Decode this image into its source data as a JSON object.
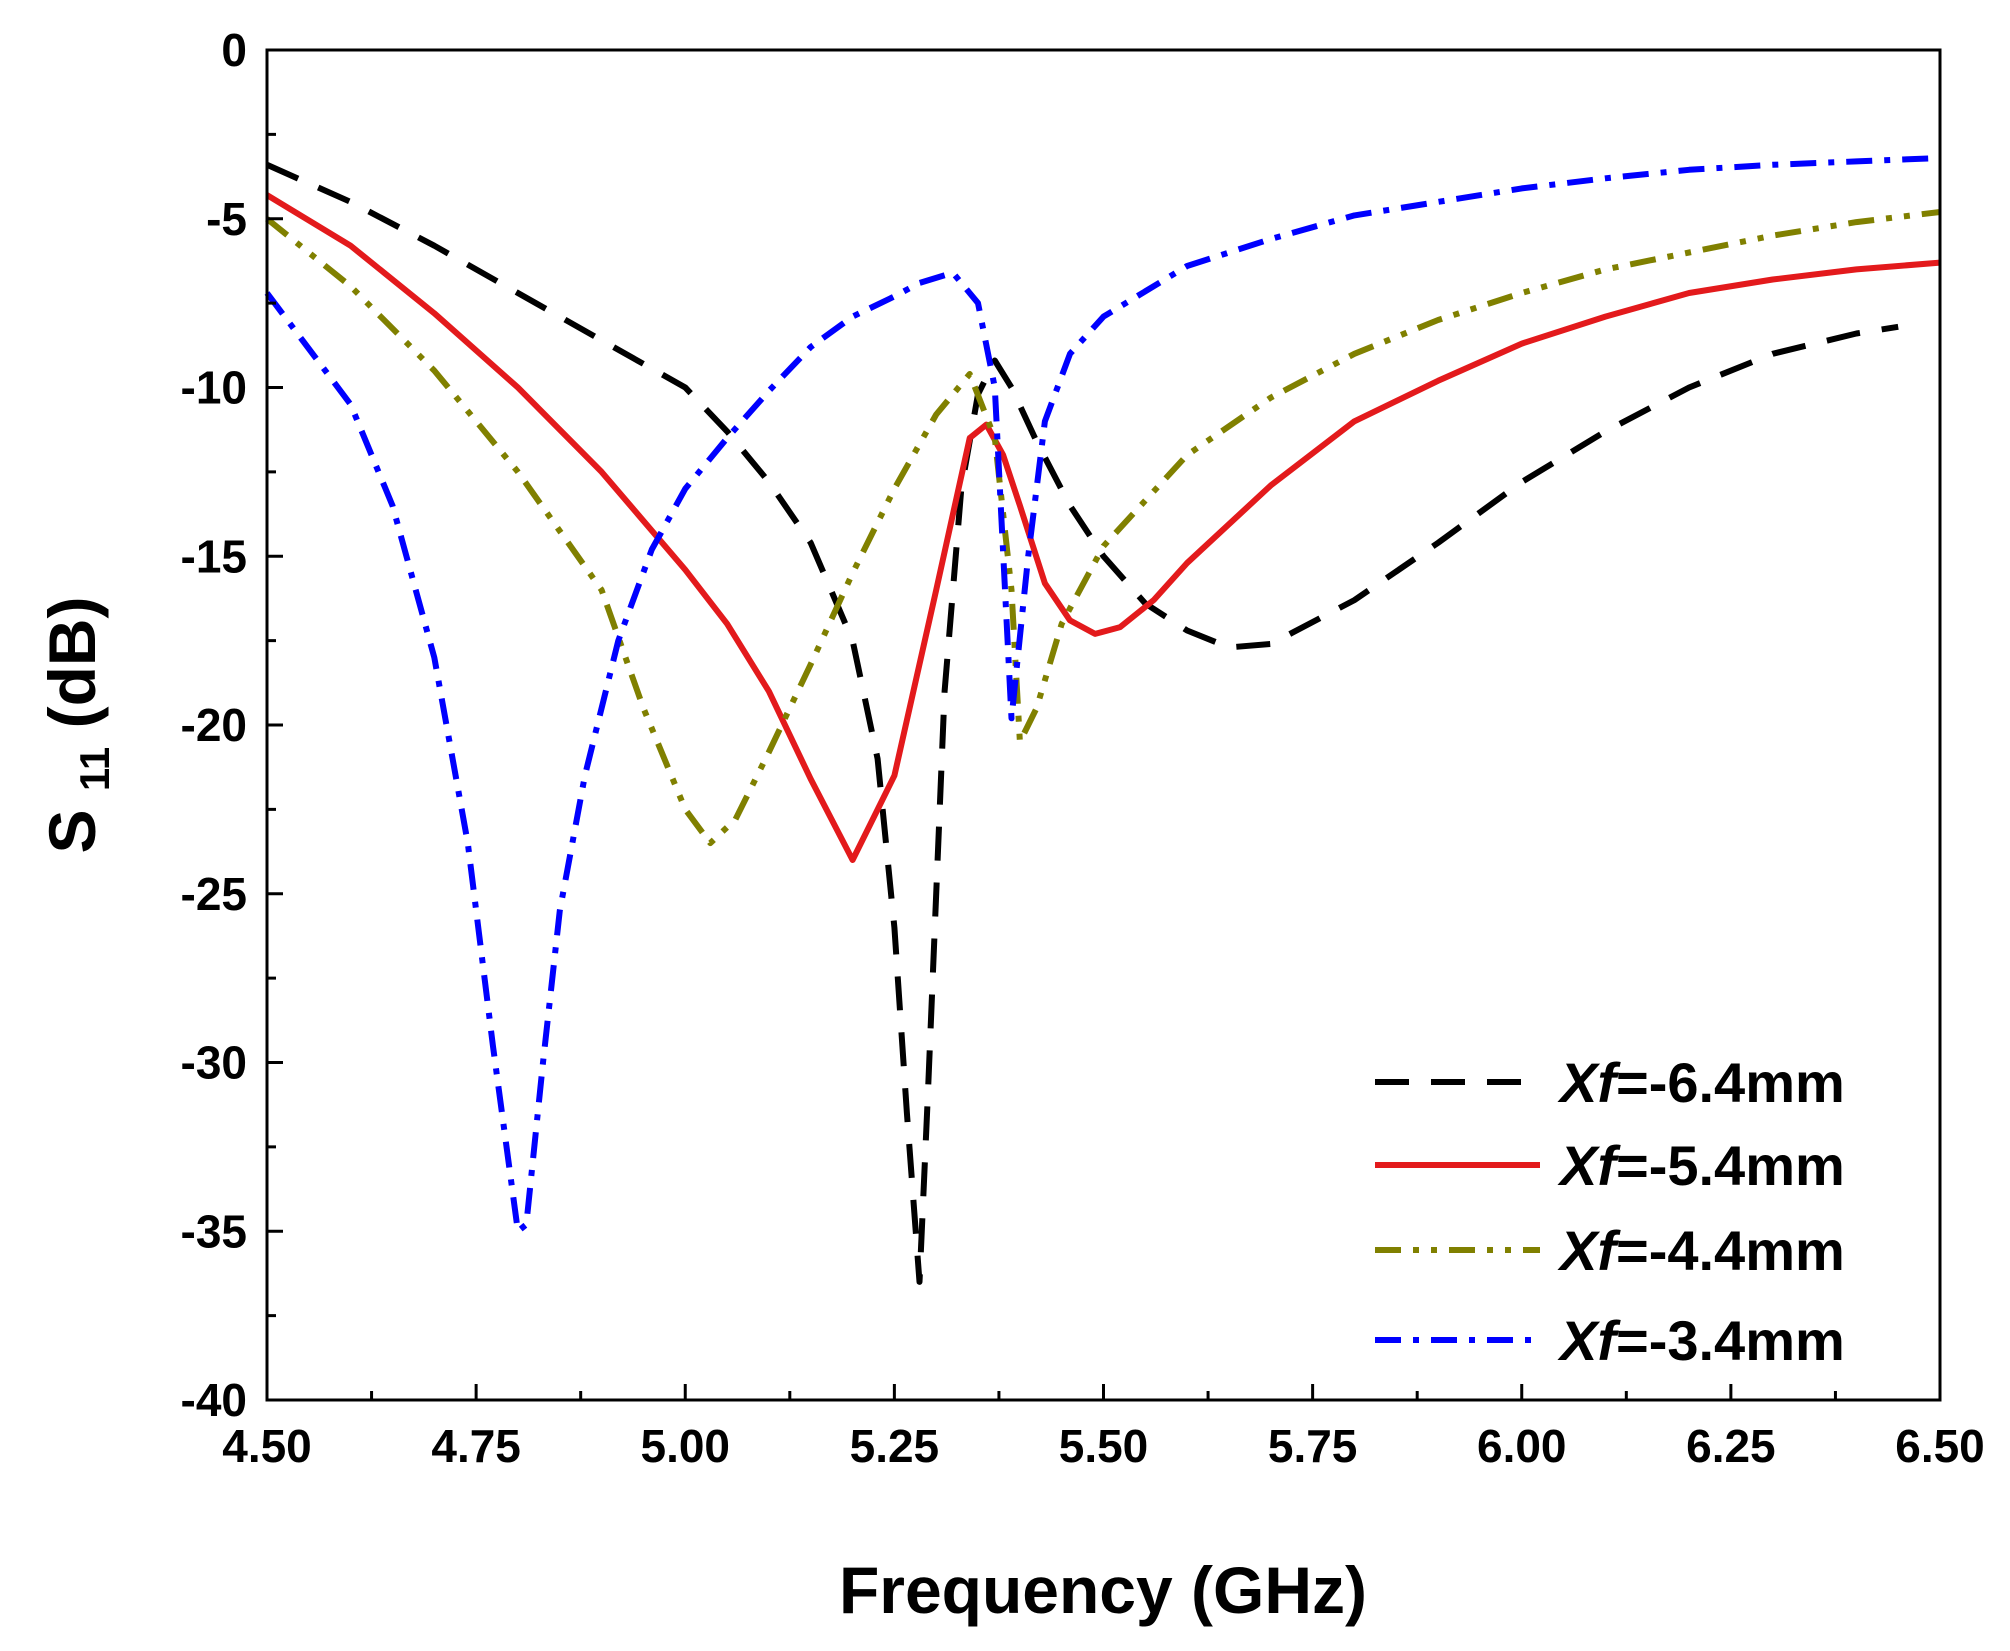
{
  "chart_data": {
    "type": "line",
    "title": "",
    "xlabel": "Frequency (GHz)",
    "ylabel_main": "S",
    "ylabel_sub": "11",
    "ylabel_unit": " (dB)",
    "xlim": [
      4.5,
      6.5
    ],
    "ylim": [
      -40,
      0
    ],
    "x_ticks": [
      4.5,
      4.75,
      5.0,
      5.25,
      5.5,
      5.75,
      6.0,
      6.25,
      6.5
    ],
    "x_tick_labels": [
      "4.50",
      "4.75",
      "5.00",
      "5.25",
      "5.50",
      "5.75",
      "6.00",
      "6.25",
      "6.50"
    ],
    "y_ticks": [
      0,
      -5,
      -10,
      -15,
      -20,
      -25,
      -30,
      -35,
      -40
    ],
    "y_tick_labels": [
      "0",
      "-5",
      "-10",
      "-15",
      "-20",
      "-25",
      "-30",
      "-35",
      "-40"
    ],
    "grid": false,
    "legend_position": "bottom-right",
    "series": [
      {
        "name": "Xf=-6.4mm",
        "label_var": "Xf",
        "label_value": "=-6.4mm",
        "color": "#000000",
        "dash": "dash",
        "points": [
          [
            4.5,
            -3.4
          ],
          [
            4.6,
            -4.5
          ],
          [
            4.7,
            -5.8
          ],
          [
            4.8,
            -7.2
          ],
          [
            4.9,
            -8.6
          ],
          [
            5.0,
            -10.0
          ],
          [
            5.05,
            -11.3
          ],
          [
            5.1,
            -12.8
          ],
          [
            5.15,
            -14.6
          ],
          [
            5.2,
            -17.5
          ],
          [
            5.23,
            -21.0
          ],
          [
            5.25,
            -26.0
          ],
          [
            5.265,
            -31.5
          ],
          [
            5.28,
            -36.5
          ],
          [
            5.29,
            -31.0
          ],
          [
            5.3,
            -25.0
          ],
          [
            5.31,
            -19.0
          ],
          [
            5.33,
            -13.0
          ],
          [
            5.35,
            -10.2
          ],
          [
            5.37,
            -9.2
          ],
          [
            5.39,
            -10.0
          ],
          [
            5.42,
            -11.6
          ],
          [
            5.46,
            -13.5
          ],
          [
            5.5,
            -15.0
          ],
          [
            5.55,
            -16.4
          ],
          [
            5.6,
            -17.2
          ],
          [
            5.65,
            -17.7
          ],
          [
            5.7,
            -17.6
          ],
          [
            5.8,
            -16.3
          ],
          [
            5.9,
            -14.6
          ],
          [
            6.0,
            -12.8
          ],
          [
            6.1,
            -11.3
          ],
          [
            6.2,
            -10.0
          ],
          [
            6.3,
            -9.0
          ],
          [
            6.4,
            -8.4
          ],
          [
            6.45,
            -8.2
          ]
        ]
      },
      {
        "name": "Xf=-5.4mm",
        "label_var": "Xf",
        "label_value": "=-5.4mm",
        "color": "#e31a1c",
        "dash": "solid",
        "points": [
          [
            4.5,
            -4.3
          ],
          [
            4.6,
            -5.8
          ],
          [
            4.7,
            -7.8
          ],
          [
            4.8,
            -10.0
          ],
          [
            4.9,
            -12.5
          ],
          [
            5.0,
            -15.4
          ],
          [
            5.05,
            -17.0
          ],
          [
            5.1,
            -19.0
          ],
          [
            5.15,
            -21.6
          ],
          [
            5.2,
            -24.0
          ],
          [
            5.25,
            -21.5
          ],
          [
            5.3,
            -16.0
          ],
          [
            5.34,
            -11.5
          ],
          [
            5.36,
            -11.1
          ],
          [
            5.38,
            -12.0
          ],
          [
            5.4,
            -13.5
          ],
          [
            5.43,
            -15.8
          ],
          [
            5.46,
            -16.9
          ],
          [
            5.49,
            -17.3
          ],
          [
            5.52,
            -17.1
          ],
          [
            5.56,
            -16.3
          ],
          [
            5.6,
            -15.2
          ],
          [
            5.7,
            -12.9
          ],
          [
            5.8,
            -11.0
          ],
          [
            5.9,
            -9.8
          ],
          [
            6.0,
            -8.7
          ],
          [
            6.1,
            -7.9
          ],
          [
            6.2,
            -7.2
          ],
          [
            6.3,
            -6.8
          ],
          [
            6.4,
            -6.5
          ],
          [
            6.5,
            -6.3
          ]
        ]
      },
      {
        "name": "Xf=-4.4mm",
        "label_var": "Xf",
        "label_value": "=-4.4mm",
        "color": "#808000",
        "dash": "dashdotdot",
        "points": [
          [
            4.5,
            -5.0
          ],
          [
            4.6,
            -7.0
          ],
          [
            4.7,
            -9.5
          ],
          [
            4.8,
            -12.5
          ],
          [
            4.9,
            -16.0
          ],
          [
            4.95,
            -19.5
          ],
          [
            5.0,
            -22.5
          ],
          [
            5.03,
            -23.5
          ],
          [
            5.06,
            -22.8
          ],
          [
            5.1,
            -20.8
          ],
          [
            5.15,
            -18.2
          ],
          [
            5.2,
            -15.5
          ],
          [
            5.25,
            -13.0
          ],
          [
            5.3,
            -10.8
          ],
          [
            5.34,
            -9.6
          ],
          [
            5.37,
            -11.5
          ],
          [
            5.39,
            -16.0
          ],
          [
            5.4,
            -20.5
          ],
          [
            5.42,
            -19.5
          ],
          [
            5.45,
            -17.0
          ],
          [
            5.5,
            -14.7
          ],
          [
            5.6,
            -12.0
          ],
          [
            5.7,
            -10.3
          ],
          [
            5.8,
            -9.0
          ],
          [
            5.9,
            -8.0
          ],
          [
            6.0,
            -7.2
          ],
          [
            6.1,
            -6.5
          ],
          [
            6.2,
            -6.0
          ],
          [
            6.3,
            -5.5
          ],
          [
            6.4,
            -5.1
          ],
          [
            6.5,
            -4.8
          ]
        ]
      },
      {
        "name": "Xf=-3.4mm",
        "label_var": "Xf",
        "label_value": "=-3.4mm",
        "color": "#0000ff",
        "dash": "dashdot",
        "points": [
          [
            4.5,
            -7.2
          ],
          [
            4.6,
            -10.5
          ],
          [
            4.65,
            -13.5
          ],
          [
            4.7,
            -18.0
          ],
          [
            4.74,
            -23.5
          ],
          [
            4.77,
            -29.5
          ],
          [
            4.8,
            -35.0
          ],
          [
            4.81,
            -34.8
          ],
          [
            4.83,
            -30.0
          ],
          [
            4.85,
            -25.5
          ],
          [
            4.88,
            -21.5
          ],
          [
            4.92,
            -17.5
          ],
          [
            4.96,
            -14.8
          ],
          [
            5.0,
            -13.0
          ],
          [
            5.05,
            -11.5
          ],
          [
            5.1,
            -10.1
          ],
          [
            5.15,
            -8.8
          ],
          [
            5.2,
            -7.9
          ],
          [
            5.25,
            -7.3
          ],
          [
            5.28,
            -6.9
          ],
          [
            5.32,
            -6.6
          ],
          [
            5.35,
            -7.5
          ],
          [
            5.37,
            -10.0
          ],
          [
            5.39,
            -19.8
          ],
          [
            5.41,
            -15.0
          ],
          [
            5.43,
            -11.0
          ],
          [
            5.46,
            -9.0
          ],
          [
            5.5,
            -7.9
          ],
          [
            5.6,
            -6.4
          ],
          [
            5.7,
            -5.6
          ],
          [
            5.8,
            -4.9
          ],
          [
            5.9,
            -4.5
          ],
          [
            6.0,
            -4.1
          ],
          [
            6.1,
            -3.8
          ],
          [
            6.2,
            -3.55
          ],
          [
            6.3,
            -3.4
          ],
          [
            6.4,
            -3.3
          ],
          [
            6.5,
            -3.2
          ]
        ]
      }
    ]
  }
}
